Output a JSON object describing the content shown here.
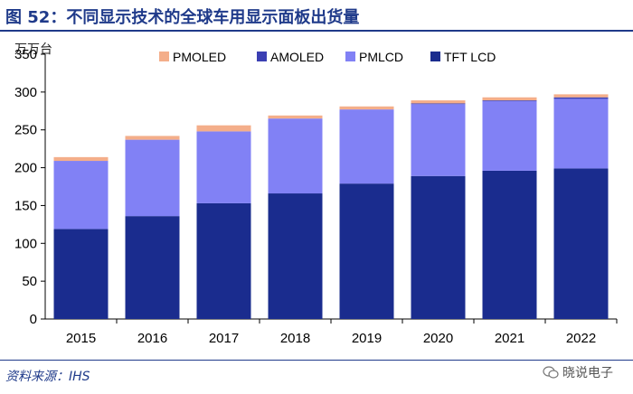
{
  "header": {
    "title": "图 52：不同显示技术的全球车用显示面板出货量"
  },
  "source": "资料来源：IHS",
  "watermark": "晓说电子",
  "chart_data": {
    "type": "bar",
    "stacked": true,
    "unit_label": "万万台",
    "categories": [
      "2015",
      "2016",
      "2017",
      "2018",
      "2019",
      "2020",
      "2021",
      "2022"
    ],
    "ylim": [
      0,
      350
    ],
    "yticks": [
      0,
      50,
      100,
      150,
      200,
      250,
      300,
      350
    ],
    "legend_position": "top",
    "series": [
      {
        "name": "TFT LCD",
        "color": "#1a2c8e",
        "values": [
          119,
          136,
          153,
          166,
          179,
          189,
          196,
          199
        ]
      },
      {
        "name": "PMLCD",
        "color": "#8181f5",
        "values": [
          90,
          101,
          95,
          99,
          98,
          95,
          92,
          92
        ]
      },
      {
        "name": "AMOLED",
        "color": "#3b3fb3",
        "values": [
          0,
          0,
          0,
          0,
          0,
          1,
          1,
          2
        ]
      },
      {
        "name": "PMOLED",
        "color": "#f4ae8a",
        "values": [
          5,
          5,
          8,
          4,
          4,
          4,
          4,
          4
        ]
      }
    ],
    "legend_order": [
      "PMOLED",
      "AMOLED",
      "PMLCD",
      "TFT LCD"
    ]
  }
}
